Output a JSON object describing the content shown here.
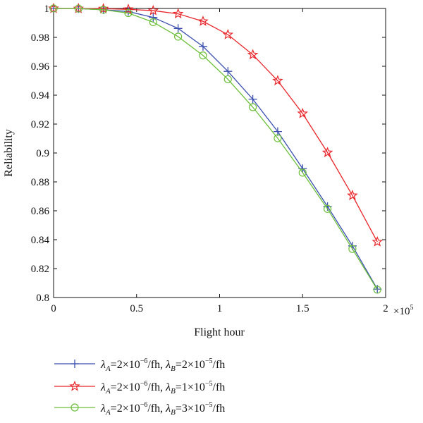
{
  "chart_data": {
    "type": "line",
    "xlabel": "Flight hour",
    "ylabel": "Reliability",
    "x_multiplier_label": "×10",
    "x_multiplier_exp": "5",
    "xlim": [
      0,
      2
    ],
    "ylim": [
      0.8,
      1.0
    ],
    "xticks": [
      0,
      0.5,
      1,
      1.5,
      2
    ],
    "xtick_labels": [
      "0",
      "0.5",
      "1",
      "1.5",
      "2"
    ],
    "yticks": [
      0.8,
      0.82,
      0.84,
      0.86,
      0.88,
      0.9,
      0.92,
      0.94,
      0.96,
      0.98,
      1.0
    ],
    "ytick_labels": [
      "0.8",
      "0.82",
      "0.84",
      "0.86",
      "0.88",
      "0.9",
      "0.92",
      "0.94",
      "0.96",
      "0.98",
      "1"
    ],
    "grid": false,
    "legend_position": "bottom",
    "x": [
      0,
      0.15,
      0.3,
      0.45,
      0.6,
      0.75,
      0.9,
      1.05,
      1.2,
      1.35,
      1.5,
      1.65,
      1.8,
      1.95
    ],
    "series": [
      {
        "label": {
          "lamA": "λ",
          "subA": "A",
          "eqA": "=2×10",
          "expA": "−6",
          "unitA": "/fh, ",
          "lamB": "λ",
          "subB": "B",
          "eqB": "=2×10",
          "expB": "−5",
          "unitB": "/fh"
        },
        "color": "#3a4fb0",
        "marker": "plus",
        "values": [
          1.0,
          0.9999,
          0.9991,
          0.9979,
          0.9938,
          0.9862,
          0.9737,
          0.9565,
          0.9372,
          0.9148,
          0.8892,
          0.863,
          0.8357,
          0.8058
        ]
      },
      {
        "label": {
          "lamA": "λ",
          "subA": "A",
          "eqA": "=2×10",
          "expA": "−6",
          "unitA": "/fh, ",
          "lamB": "λ",
          "subB": "B",
          "eqB": "=1×10",
          "expB": "−5",
          "unitB": "/fh"
        },
        "color": "#e8262a",
        "marker": "star",
        "values": [
          1.0,
          0.9999,
          0.9998,
          0.9994,
          0.9985,
          0.9963,
          0.9911,
          0.9819,
          0.968,
          0.95,
          0.9273,
          0.9003,
          0.8706,
          0.8385
        ]
      },
      {
        "label": {
          "lamA": "λ",
          "subA": "A",
          "eqA": "=2×10",
          "expA": "−6",
          "unitA": "/fh, ",
          "lamB": "λ",
          "subB": "B",
          "eqB": "=3×10",
          "expB": "−5",
          "unitB": "/fh"
        },
        "color": "#6cbf3a",
        "marker": "circle",
        "values": [
          1.0,
          0.9999,
          0.9991,
          0.9968,
          0.9905,
          0.9805,
          0.9675,
          0.951,
          0.9317,
          0.9102,
          0.8864,
          0.8613,
          0.8336,
          0.8054
        ]
      }
    ]
  }
}
